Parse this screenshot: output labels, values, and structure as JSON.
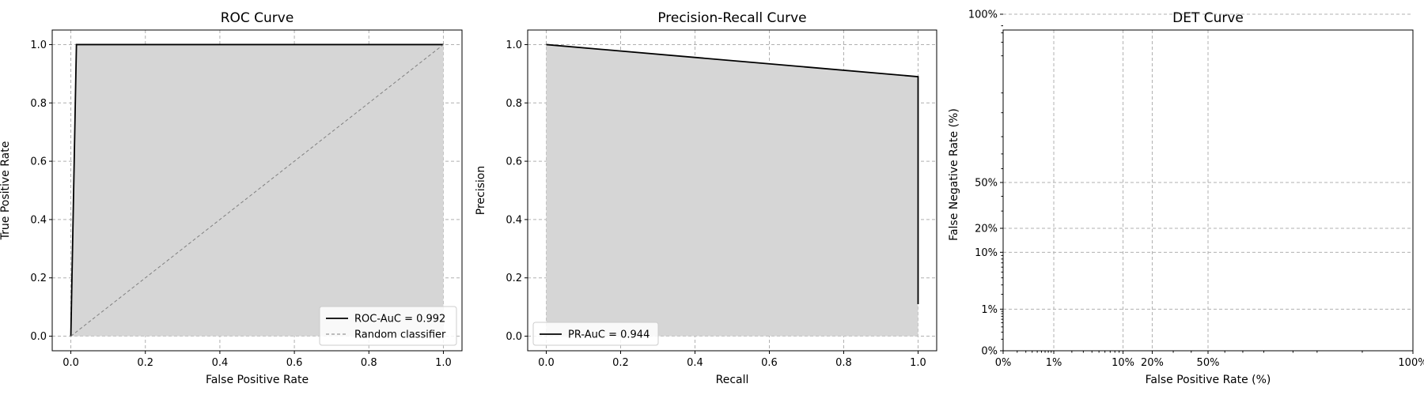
{
  "colors": {
    "curve": "#000000",
    "fill": "#d6d6d6",
    "random": "#808080",
    "grid": "#b0b0b0",
    "legend_bg": "#ffffff"
  },
  "chart_data": [
    {
      "type": "line",
      "title": "ROC Curve",
      "xlabel": "False Positive Rate",
      "ylabel": "True Positive Rate",
      "xlim": [
        -0.05,
        1.05
      ],
      "ylim": [
        -0.05,
        1.05
      ],
      "xticks": [
        0.0,
        0.2,
        0.4,
        0.6,
        0.8,
        1.0
      ],
      "xtick_labels": [
        "0.0",
        "0.2",
        "0.4",
        "0.6",
        "0.8",
        "1.0"
      ],
      "yticks": [
        0.0,
        0.2,
        0.4,
        0.6,
        0.8,
        1.0
      ],
      "ytick_labels": [
        "0.0",
        "0.2",
        "0.4",
        "0.6",
        "0.8",
        "1.0"
      ],
      "grid": true,
      "legend_position": "lower-right",
      "series": [
        {
          "name": "ROC-AuC = 0.992",
          "x": [
            0.0,
            0.015,
            1.0
          ],
          "y": [
            0.0,
            1.0,
            1.0
          ],
          "style": "solid",
          "filled": true
        },
        {
          "name": "Random classifier",
          "x": [
            0.0,
            1.0
          ],
          "y": [
            0.0,
            1.0
          ],
          "style": "dashed",
          "filled": false
        }
      ]
    },
    {
      "type": "line",
      "title": "Precision-Recall Curve",
      "xlabel": "Recall",
      "ylabel": "Precision",
      "xlim": [
        -0.05,
        1.05
      ],
      "ylim": [
        -0.05,
        1.05
      ],
      "xticks": [
        0.0,
        0.2,
        0.4,
        0.6,
        0.8,
        1.0
      ],
      "xtick_labels": [
        "0.0",
        "0.2",
        "0.4",
        "0.6",
        "0.8",
        "1.0"
      ],
      "yticks": [
        0.0,
        0.2,
        0.4,
        0.6,
        0.8,
        1.0
      ],
      "ytick_labels": [
        "0.0",
        "0.2",
        "0.4",
        "0.6",
        "0.8",
        "1.0"
      ],
      "grid": true,
      "legend_position": "lower-left",
      "series": [
        {
          "name": "PR-AuC = 0.944",
          "x": [
            0.0,
            1.0,
            1.0
          ],
          "y": [
            1.0,
            0.89,
            0.11
          ],
          "style": "solid",
          "filled": true
        }
      ]
    },
    {
      "type": "line",
      "scale": "probit",
      "title": "DET Curve",
      "xlabel": "False Positive Rate (%)",
      "ylabel": "False Negative Rate (%)",
      "xticks": [
        "0%",
        "1%",
        "10%",
        "20%",
        "50%",
        "100%"
      ],
      "yticks": [
        "0%",
        "1%",
        "10%",
        "20%",
        "50%",
        "100%"
      ],
      "grid": true,
      "series": []
    }
  ]
}
